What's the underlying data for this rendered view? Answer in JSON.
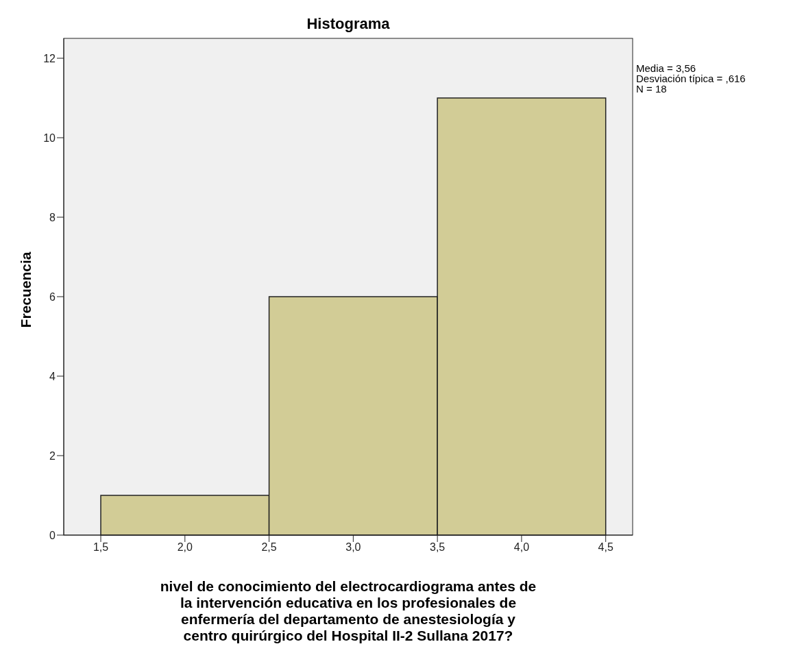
{
  "chart_data": {
    "type": "histogram",
    "title": "Histograma",
    "xlabel": "nivel de conocimiento del electrocardiograma antes de\nla  intervención educativa en los profesionales de\nenfermería  del departamento de anestesiología y\ncentro quirúrgico del Hospital II-2 Sullana 2017?",
    "ylabel": "Frecuencia",
    "bins": [
      1.5,
      2.5,
      3.5,
      4.5
    ],
    "values": [
      1,
      6,
      11
    ],
    "color": "#d2cc96",
    "xlim": [
      1.28,
      4.66
    ],
    "xticks": [
      {
        "value": 1.5,
        "label": "1,5"
      },
      {
        "value": 2,
        "label": "2,0"
      },
      {
        "value": 2.5,
        "label": "2,5"
      },
      {
        "value": 3,
        "label": "3,0"
      },
      {
        "value": 3.5,
        "label": "3,5"
      },
      {
        "value": 4,
        "label": "4,0"
      },
      {
        "value": 4.5,
        "label": "4,5"
      }
    ],
    "ylim": [
      0,
      12.5
    ],
    "yticks": [
      0,
      2,
      4,
      6,
      8,
      10,
      12
    ],
    "grid": false,
    "annotations": [
      "Media = 3,56",
      "Desviación típica = ,616",
      "N = 18"
    ]
  }
}
